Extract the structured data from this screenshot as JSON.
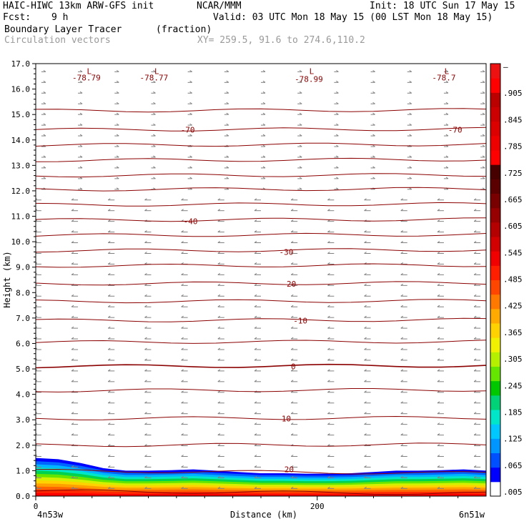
{
  "header": {
    "model": "HAIC-HIWC 13km ARW-GFS init",
    "org": "NCAR/MMM",
    "init": "Init: 18 UTC Sun 17 May 15",
    "fcst_label": "Fcst:",
    "fcst_value": "9 h",
    "valid": "Valid: 03 UTC Mon 18 May 15 (00 LST Mon 18 May 15)",
    "field": "Boundary Layer Tracer",
    "units": "(fraction)",
    "vectors": "Circulation vectors",
    "xy": "XY= 259.5, 91.6 to 274.6,110.2"
  },
  "chart_data": {
    "type": "heatmap",
    "description_field": "Boundary Layer Tracer (fraction) with circulation vectors and temperature contours",
    "xlabel": "Distance (km)",
    "ylabel": "Height (km)",
    "x_tick_labels": [
      "0",
      "200"
    ],
    "x_end_labels": {
      "left": "4n53w",
      "right": "6n51w"
    },
    "y_ticks": [
      0.0,
      1.0,
      2.0,
      3.0,
      4.0,
      5.0,
      6.0,
      7.0,
      8.0,
      9.0,
      10.0,
      11.0,
      12.0,
      13.0,
      14.0,
      15.0,
      16.0,
      17.0
    ],
    "y_tick_labels": [
      "0.0",
      "1.0",
      "2.0",
      "3.0",
      "4.0",
      "5.0",
      "6.0",
      "7.0",
      "8.0",
      "9.0",
      "10.0",
      "11.0",
      "12.0",
      "13.0",
      "14.0",
      "15.0",
      "16.0",
      "17.0"
    ],
    "x_range": [
      0,
      320
    ],
    "y_range": [
      0,
      17
    ],
    "colorbar": {
      "labels": [
        ".005",
        ".065",
        ".125",
        ".185",
        ".245",
        ".305",
        ".365",
        ".425",
        ".485",
        ".545",
        ".605",
        ".665",
        ".725",
        ".785",
        ".845",
        ".905",
        "–"
      ],
      "colors": [
        "#ffffff",
        "#0000ff",
        "#0050ff",
        "#0096ff",
        "#00c8ff",
        "#00e6c8",
        "#00d278",
        "#00c800",
        "#64e600",
        "#b4f000",
        "#f0f000",
        "#ffd200",
        "#ffaa00",
        "#ff7800",
        "#ff4600",
        "#ff1e00",
        "#f00000",
        "#d20000",
        "#b40000",
        "#960000",
        "#780000",
        "#5a0000",
        "#460000",
        "#ff0000",
        "#ee0000",
        "#dd0000",
        "#cc0000",
        "#bb0000",
        "#ff0000",
        "#ee1111"
      ]
    },
    "contour_labels": [
      {
        "text": "-78.79",
        "x": 36,
        "y": 16.45
      },
      {
        "text": "-78.77",
        "x": 84,
        "y": 16.45
      },
      {
        "text": "-78.99",
        "x": 194,
        "y": 16.4
      },
      {
        "text": "-78.7",
        "x": 290,
        "y": 16.45
      },
      {
        "text": "-70",
        "x": 108,
        "y": 14.4
      },
      {
        "text": "-70",
        "x": 298,
        "y": 14.4
      },
      {
        "text": "-40",
        "x": 110,
        "y": 10.8
      },
      {
        "text": "-30",
        "x": 178,
        "y": 9.6
      },
      {
        "text": "-20",
        "x": 180,
        "y": 8.35
      },
      {
        "text": "-10",
        "x": 188,
        "y": 6.9
      },
      {
        "text": "0",
        "x": 183,
        "y": 5.1
      },
      {
        "text": "10",
        "x": 178,
        "y": 3.05
      },
      {
        "text": "20",
        "x": 180,
        "y": 1.05
      }
    ],
    "low_markers": [
      {
        "text": "L",
        "x": 38,
        "y": 16.7
      },
      {
        "text": "L",
        "x": 86,
        "y": 16.7
      },
      {
        "text": "L",
        "x": 196,
        "y": 16.7
      },
      {
        "text": "L",
        "x": 292,
        "y": 16.7
      }
    ],
    "tracer_top_km": [
      1.5,
      1.45,
      1.3,
      1.1,
      1.0,
      1.0,
      1.02,
      1.05,
      1.0,
      0.95,
      0.9,
      0.9,
      0.88,
      0.88,
      0.9,
      0.95,
      1.0,
      1.0,
      1.02,
      1.05,
      1.0
    ]
  }
}
